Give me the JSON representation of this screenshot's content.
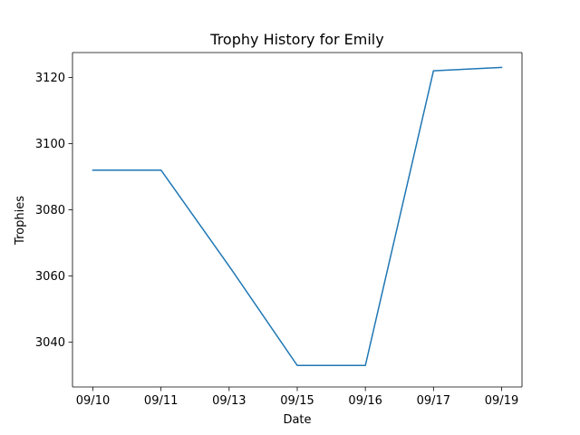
{
  "chart_data": {
    "type": "line",
    "title": "Trophy History for Emily",
    "xlabel": "Date",
    "ylabel": "Trophies",
    "categories": [
      "09/10",
      "09/11",
      "09/13",
      "09/15",
      "09/16",
      "09/17",
      "09/19"
    ],
    "series": [
      {
        "values": [
          3092,
          3092,
          3063,
          3033,
          3033,
          3122,
          3123
        ],
        "color": "#1f77b4"
      }
    ],
    "ylim": [
      3026.5,
      3127.5
    ],
    "yticks": [
      3040,
      3060,
      3080,
      3100,
      3120
    ],
    "ytick_labels": [
      "3040",
      "3060",
      "3080",
      "3100",
      "3120"
    ],
    "grid": false,
    "legend": "none"
  }
}
